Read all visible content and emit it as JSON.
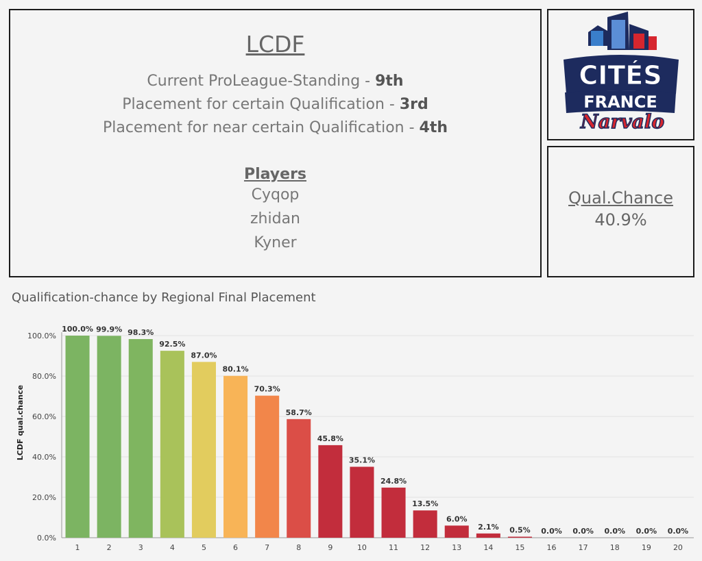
{
  "team": {
    "name": "LCDF",
    "standing_label": "Current ProLeague-Standing - ",
    "standing_value": "9th",
    "certain_label": "Placement for certain Qualification - ",
    "certain_value": "3rd",
    "near_label": "Placement for near certain Qualification - ",
    "near_value": "4th",
    "players_title": "Players",
    "players": [
      "Cyqop",
      "zhidan",
      "Kyner"
    ]
  },
  "logo": {
    "line1": "CITÉS",
    "line2": "FRANCE",
    "line3": "Narvalo",
    "colors": {
      "navy": "#1d2b5e",
      "red": "#d6262e",
      "blue": "#3a7ecb"
    }
  },
  "qualification": {
    "title": "Qual.Chance",
    "value": "40.9%"
  },
  "chart_data": {
    "type": "bar",
    "title": "Qualification-chance by Regional Final Placement",
    "xlabel": "",
    "ylabel": "LCDF qual.chance",
    "ylim": [
      0,
      100
    ],
    "yticks": [
      "0.0%",
      "20.0%",
      "40.0%",
      "60.0%",
      "80.0%",
      "100.0%"
    ],
    "categories": [
      "1",
      "2",
      "3",
      "4",
      "5",
      "6",
      "7",
      "8",
      "9",
      "10",
      "11",
      "12",
      "13",
      "14",
      "15",
      "16",
      "17",
      "18",
      "19",
      "20"
    ],
    "values": [
      100.0,
      99.9,
      98.3,
      92.5,
      87.0,
      80.1,
      70.3,
      58.7,
      45.8,
      35.1,
      24.8,
      13.5,
      6.0,
      2.1,
      0.5,
      0.0,
      0.0,
      0.0,
      0.0,
      0.0
    ],
    "labels": [
      "100.0%",
      "99.9%",
      "98.3%",
      "92.5%",
      "87.0%",
      "80.1%",
      "70.3%",
      "58.7%",
      "45.8%",
      "35.1%",
      "24.8%",
      "13.5%",
      "6.0%",
      "2.1%",
      "0.5%",
      "0.0%",
      "0.0%",
      "0.0%",
      "0.0%",
      "0.0%"
    ],
    "colors": [
      "#7cb462",
      "#7cb462",
      "#7fb560",
      "#a9c25a",
      "#e2cc5e",
      "#f8b457",
      "#f2864a",
      "#db4e47",
      "#c22d3c",
      "#c22d3c",
      "#c22d3c",
      "#c22d3c",
      "#c22d3c",
      "#c22d3c",
      "#c22d3c",
      "#c22d3c",
      "#c22d3c",
      "#c22d3c",
      "#c22d3c",
      "#c22d3c"
    ],
    "grid": true
  }
}
